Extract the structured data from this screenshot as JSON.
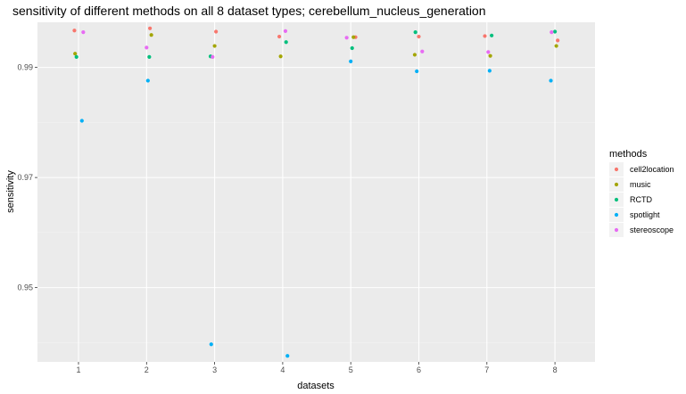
{
  "chart_data": {
    "type": "scatter",
    "title": "sensitivity of different methods on all 8 dataset types; cerebellum_nucleus_generation",
    "xlabel": "datasets",
    "ylabel": "sensitivity",
    "categories": [
      "1",
      "2",
      "3",
      "4",
      "5",
      "6",
      "7",
      "8"
    ],
    "y_ticks": [
      0.95,
      0.97,
      0.99
    ],
    "y_tick_labels": [
      "0.95",
      "0.97",
      "0.99"
    ],
    "ylim": [
      0.9365,
      0.9982
    ],
    "grid": true,
    "legend": {
      "title": "methods",
      "placement": "right"
    },
    "series": [
      {
        "name": "cell2location",
        "color": "#F8766D",
        "points": [
          {
            "x": "1",
            "y": 0.9967
          },
          {
            "x": "2",
            "y": 0.9971
          },
          {
            "x": "3",
            "y": 0.9965
          },
          {
            "x": "4",
            "y": 0.9956
          },
          {
            "x": "5",
            "y": 0.9955
          },
          {
            "x": "6",
            "y": 0.9956
          },
          {
            "x": "7",
            "y": 0.9957
          },
          {
            "x": "8",
            "y": 0.9949
          }
        ]
      },
      {
        "name": "music",
        "color": "#A3A500",
        "points": [
          {
            "x": "1",
            "y": 0.9925
          },
          {
            "x": "2",
            "y": 0.9959
          },
          {
            "x": "3",
            "y": 0.9939
          },
          {
            "x": "4",
            "y": 0.992
          },
          {
            "x": "5",
            "y": 0.9955
          },
          {
            "x": "6",
            "y": 0.9923
          },
          {
            "x": "7",
            "y": 0.9921
          },
          {
            "x": "8",
            "y": 0.9939
          }
        ]
      },
      {
        "name": "RCTD",
        "color": "#00BF7D",
        "points": [
          {
            "x": "1",
            "y": 0.9919
          },
          {
            "x": "2",
            "y": 0.9919
          },
          {
            "x": "3",
            "y": 0.992
          },
          {
            "x": "4",
            "y": 0.9946
          },
          {
            "x": "5",
            "y": 0.9935
          },
          {
            "x": "6",
            "y": 0.9964
          },
          {
            "x": "7",
            "y": 0.9958
          },
          {
            "x": "8",
            "y": 0.9965
          }
        ]
      },
      {
        "name": "spotlight",
        "color": "#00B0F6",
        "points": [
          {
            "x": "1",
            "y": 0.9803
          },
          {
            "x": "2",
            "y": 0.9876
          },
          {
            "x": "3",
            "y": 0.9397
          },
          {
            "x": "4",
            "y": 0.9376
          },
          {
            "x": "5",
            "y": 0.9911
          },
          {
            "x": "6",
            "y": 0.9893
          },
          {
            "x": "7",
            "y": 0.9894
          },
          {
            "x": "8",
            "y": 0.9876
          }
        ]
      },
      {
        "name": "stereoscope",
        "color": "#E76BF3",
        "points": [
          {
            "x": "1",
            "y": 0.9964
          },
          {
            "x": "2",
            "y": 0.9936
          },
          {
            "x": "3",
            "y": 0.9919
          },
          {
            "x": "4",
            "y": 0.9966
          },
          {
            "x": "5",
            "y": 0.9954
          },
          {
            "x": "6",
            "y": 0.9929
          },
          {
            "x": "7",
            "y": 0.9928
          },
          {
            "x": "8",
            "y": 0.9964
          }
        ]
      }
    ]
  }
}
